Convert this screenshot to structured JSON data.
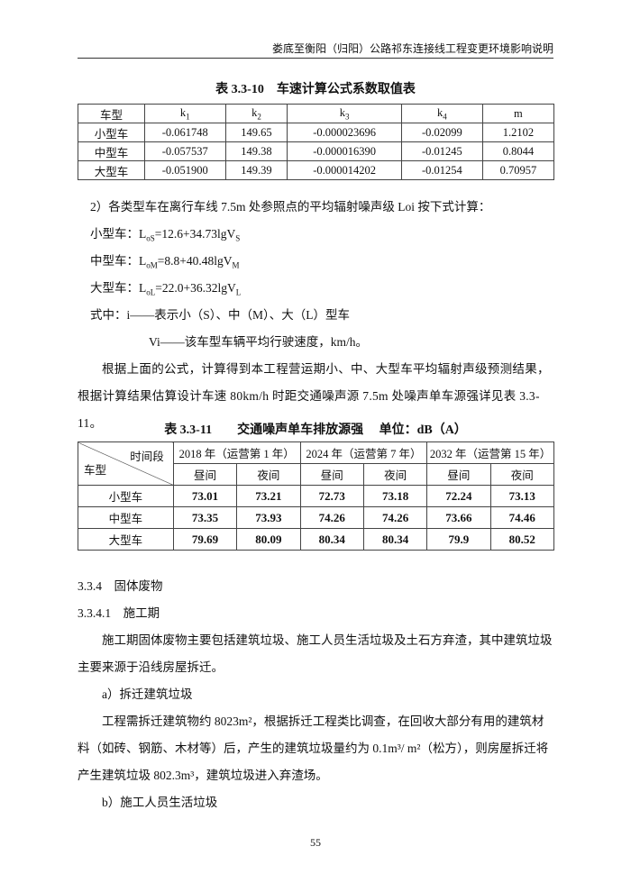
{
  "header": "娄底至衡阳（归阳）公路祁东连接线工程变更环境影响说明",
  "table1": {
    "caption": "表 3.3-10　车速计算公式系数取值表",
    "headers": [
      "车型",
      "k1",
      "k2",
      "k3",
      "k4",
      "m"
    ],
    "rows": [
      [
        "小型车",
        "-0.061748",
        "149.65",
        "-0.000023696",
        "-0.02099",
        "1.2102"
      ],
      [
        "中型车",
        "-0.057537",
        "149.38",
        "-0.000016390",
        "-0.01245",
        "0.8044"
      ],
      [
        "大型车",
        "-0.051900",
        "149.39",
        "-0.000014202",
        "-0.01254",
        "0.70957"
      ]
    ]
  },
  "para1": "2）各类型车在离行车线 7.5m 处参照点的平均辐射噪声级 Loi 按下式计算：",
  "f1": "小型车：LoS=12.6+34.73lgVS",
  "f2": "中型车：LoM=8.8+40.48lgVM",
  "f3": "大型车：LoL=22.0+36.32lgVL",
  "where1": "式中：i——表示小（S）、中（M）、大（L）型车",
  "where2": "Vi——该车型车辆平均行驶速度，km/h。",
  "para2": "根据上面的公式，计算得到本工程营运期小、中、大型车平均辐射声级预测结果，根据计算结果估算设计车速 80km/h 时距交通噪声源 7.5m 处噪声单车源强详见表 3.3-11。",
  "table2": {
    "caption": "表 3.3-11　　交通噪声单车排放源强　 单位：dB（A）",
    "corner_top": "时间段",
    "corner_bottom": "车型",
    "years": [
      "2018 年（运营第 1 年）",
      "2024 年（运营第 7 年）",
      "2032 年（运营第 15 年）"
    ],
    "sub": [
      "昼间",
      "夜间",
      "昼间",
      "夜间",
      "昼间",
      "夜间"
    ],
    "rows": [
      [
        "小型车",
        "73.01",
        "73.21",
        "72.73",
        "73.18",
        "72.24",
        "73.13"
      ],
      [
        "中型车",
        "73.35",
        "73.93",
        "74.26",
        "74.26",
        "73.66",
        "74.46"
      ],
      [
        "大型车",
        "79.69",
        "80.09",
        "80.34",
        "80.34",
        "79.9",
        "80.52"
      ]
    ]
  },
  "s1": "3.3.4　固体废物",
  "s2": "3.3.4.1　施工期",
  "para3": "施工期固体废物主要包括建筑垃圾、施工人员生活垃圾及土石方弃渣，其中建筑垃圾主要来源于沿线房屋拆迁。",
  "a": "a）拆迁建筑垃圾",
  "para4": "工程需拆迁建筑物约 8023m²，根据拆迁工程类比调查，在回收大部分有用的建筑材料（如砖、钢筋、木材等）后，产生的建筑垃圾量约为 0.1m³/ m²（松方），则房屋拆迁将产生建筑垃圾 802.3m³，建筑垃圾进入弃渣场。",
  "b": "b）施工人员生活垃圾",
  "page_number": "55"
}
